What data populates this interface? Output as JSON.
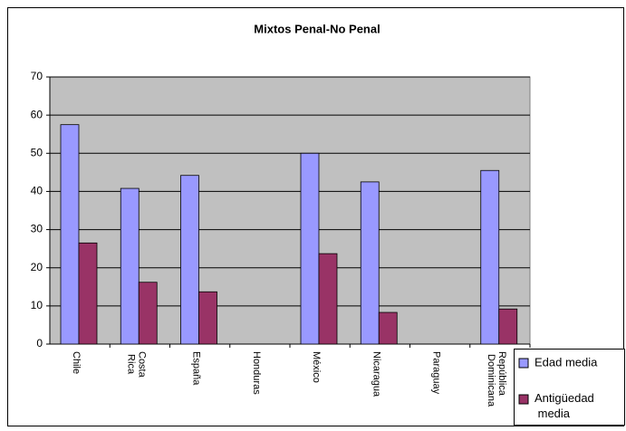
{
  "chart_data": {
    "type": "bar",
    "title": "Mixtos Penal-No Penal",
    "categories": [
      "Chile",
      "Costa Rica",
      "España",
      "Honduras",
      "México",
      "Nicaragua",
      "Paraguay",
      "República Dominicana"
    ],
    "series": [
      {
        "name": "Edad media",
        "color": "#9999ff",
        "values": [
          57.5,
          40.8,
          44.2,
          null,
          50,
          42.5,
          null,
          45.5
        ]
      },
      {
        "name": "Antigüedad media",
        "color": "#993366",
        "values": [
          26.5,
          16.2,
          13.7,
          null,
          23.7,
          8.3,
          null,
          9.2
        ]
      }
    ],
    "ylim": [
      0,
      70
    ],
    "yticks": [
      0,
      10,
      20,
      30,
      40,
      50,
      60,
      70
    ],
    "grid": true,
    "plot_background": "#c0c0c0"
  }
}
